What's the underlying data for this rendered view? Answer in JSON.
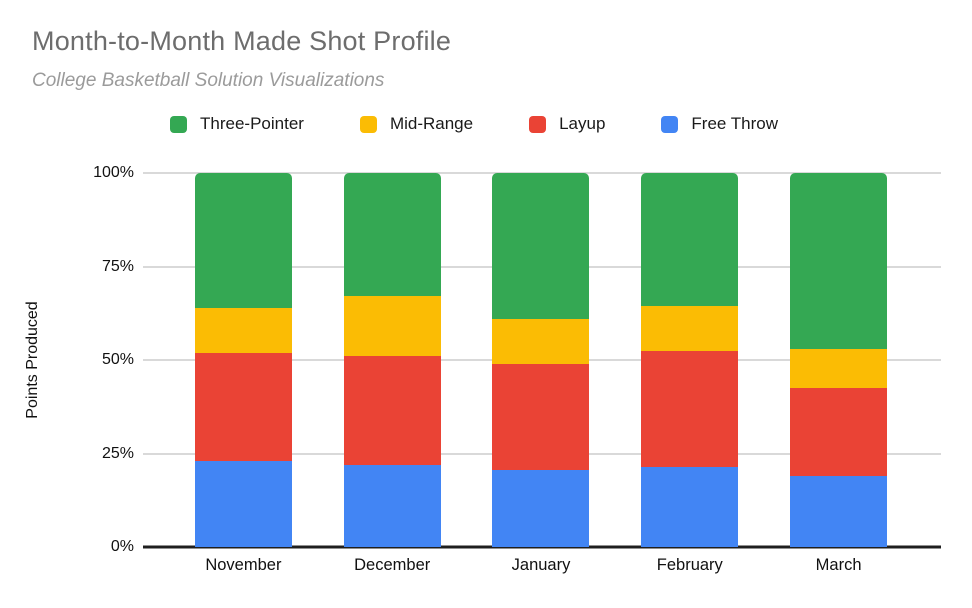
{
  "header": {
    "title": "Month-to-Month Made Shot Profile",
    "subtitle": "College Basketball Solution Visualizations"
  },
  "chart_data": {
    "type": "bar",
    "variant": "stacked-100-percent",
    "title": "Month-to-Month Made Shot Profile",
    "subtitle": "College Basketball Solution Visualizations",
    "xlabel": "",
    "ylabel": "Points Produced",
    "ylim": [
      0,
      100
    ],
    "grid": true,
    "legend_position": "top",
    "categories": [
      "November",
      "December",
      "January",
      "February",
      "March"
    ],
    "series": [
      {
        "name": "Three-Pointer",
        "color": "#34A853",
        "values": [
          36,
          33,
          39,
          35.5,
          47
        ]
      },
      {
        "name": "Mid-Range",
        "color": "#FBBC04",
        "values": [
          12,
          16,
          12,
          12,
          10.5
        ]
      },
      {
        "name": "Layup",
        "color": "#EA4335",
        "values": [
          29,
          29,
          28.5,
          31,
          23.5
        ]
      },
      {
        "name": "Free Throw",
        "color": "#4285F4",
        "values": [
          23,
          22,
          20.5,
          21.5,
          19
        ]
      }
    ],
    "y_ticks": [
      {
        "label": "100%",
        "value": 100
      },
      {
        "label": "75%",
        "value": 75
      },
      {
        "label": "50%",
        "value": 50
      },
      {
        "label": "25%",
        "value": 25
      },
      {
        "label": "0%",
        "value": 0
      }
    ],
    "colors": {
      "gridline": "#d9d9d9",
      "baseline": "#1f1f1f",
      "title_text": "#6d6d6d",
      "subtitle_text": "#9b9b9b",
      "axis_text": "#111111"
    }
  }
}
